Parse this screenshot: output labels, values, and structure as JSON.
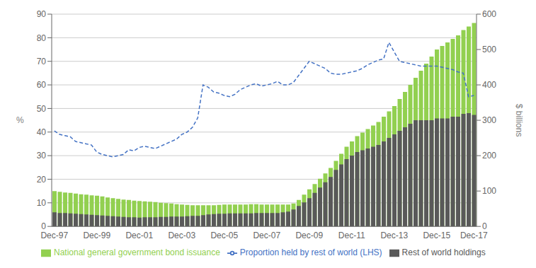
{
  "chart_data": {
    "type": "bar",
    "categories": [
      "Dec-97",
      null,
      null,
      null,
      null,
      null,
      null,
      null,
      "Dec-99",
      null,
      null,
      null,
      null,
      null,
      null,
      null,
      "Dec-01",
      null,
      null,
      null,
      null,
      null,
      null,
      null,
      "Dec-03",
      null,
      null,
      null,
      null,
      null,
      null,
      null,
      "Dec-05",
      null,
      null,
      null,
      null,
      null,
      null,
      null,
      "Dec-07",
      null,
      null,
      null,
      null,
      null,
      null,
      null,
      "Dec-09",
      null,
      null,
      null,
      null,
      null,
      null,
      null,
      "Dec-11",
      null,
      null,
      null,
      null,
      null,
      null,
      null,
      "Dec-13",
      null,
      null,
      null,
      null,
      null,
      null,
      null,
      "Dec-15",
      null,
      null,
      null,
      null,
      null,
      null,
      "Dec-17"
    ],
    "ylabel": "%",
    "y2label": "$ billions",
    "ylim": [
      0,
      90
    ],
    "yticks": [
      0,
      10,
      20,
      30,
      40,
      50,
      60,
      70,
      80,
      90
    ],
    "y2lim": [
      0,
      600
    ],
    "y2ticks": [
      0,
      100,
      200,
      300,
      400,
      500,
      600
    ],
    "grid": true,
    "legend": "lower left",
    "series": [
      {
        "name": "National general government bond issuance",
        "type": "bar",
        "axis": "y2",
        "color": "#92d050",
        "values": [
          100,
          98,
          96,
          95,
          93,
          91,
          90,
          88,
          87,
          85,
          82,
          80,
          78,
          76,
          75,
          73,
          72,
          71,
          70,
          69,
          67,
          66,
          65,
          63,
          62,
          61,
          60,
          60,
          60,
          60,
          60,
          61,
          62,
          62,
          62,
          62,
          62,
          63,
          63,
          62,
          62,
          62,
          62,
          62,
          62,
          65,
          75,
          90,
          105,
          120,
          135,
          150,
          165,
          185,
          205,
          225,
          240,
          255,
          265,
          275,
          285,
          295,
          310,
          325,
          340,
          360,
          380,
          400,
          420,
          440,
          460,
          480,
          500,
          510,
          520,
          530,
          540,
          555,
          565,
          575
        ]
      },
      {
        "name": "Rest of world holdings",
        "type": "bar",
        "axis": "y2",
        "color": "#595959",
        "values": [
          40,
          38,
          38,
          37,
          36,
          35,
          34,
          33,
          32,
          31,
          30,
          29,
          28,
          27,
          26,
          26,
          25,
          26,
          26,
          26,
          27,
          27,
          28,
          28,
          28,
          29,
          30,
          30,
          32,
          34,
          35,
          36,
          36,
          37,
          37,
          37,
          37,
          37,
          38,
          38,
          38,
          38,
          38,
          40,
          42,
          48,
          58,
          68,
          80,
          95,
          110,
          125,
          140,
          160,
          175,
          190,
          200,
          210,
          215,
          220,
          225,
          230,
          240,
          250,
          260,
          270,
          280,
          290,
          300,
          300,
          300,
          300,
          305,
          305,
          305,
          310,
          310,
          318,
          320,
          315
        ]
      },
      {
        "name": "Proportion held by rest of world (LHS)",
        "type": "line",
        "color": "#4472c4",
        "line_style": "dashed",
        "marker": "none",
        "values": [
          40.5,
          39.0,
          38.5,
          38.0,
          36.0,
          35.5,
          35.0,
          34.5,
          31.5,
          30.5,
          30.0,
          29.5,
          30.0,
          30.5,
          32.5,
          32.0,
          33.5,
          34.0,
          33.5,
          33.0,
          34.0,
          35.0,
          36.0,
          37.0,
          39.0,
          40.0,
          42.0,
          46.0,
          60.0,
          59.0,
          57.0,
          56.5,
          55.5,
          55.0,
          56.0,
          58.0,
          59.0,
          60.0,
          60.5,
          59.5,
          60.0,
          60.5,
          61.5,
          60.0,
          60.0,
          61.0,
          64.0,
          67.0,
          70.0,
          69.0,
          68.0,
          67.0,
          65.0,
          64.5,
          64.5,
          65.0,
          65.5,
          66.0,
          67.0,
          68.5,
          69.5,
          70.5,
          71.0,
          78.0,
          74.0,
          70.0,
          69.5,
          69.0,
          68.5,
          68.0,
          68.0,
          68.0,
          68.0,
          67.5,
          67.0,
          66.5,
          65.5,
          65.0,
          55.0,
          55.5
        ]
      }
    ]
  }
}
